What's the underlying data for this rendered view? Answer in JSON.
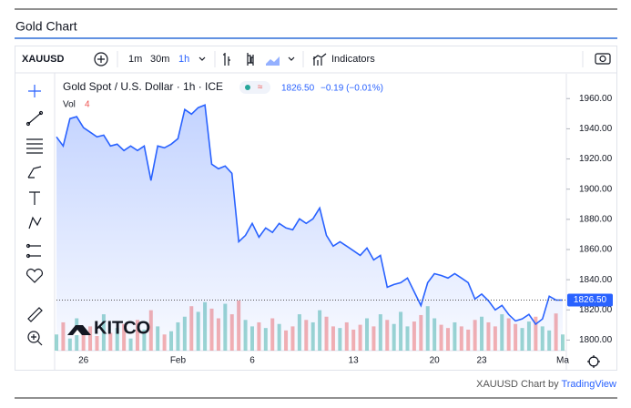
{
  "page_title": "Gold Chart",
  "toolbar": {
    "symbol": "XAUUSD",
    "intervals": [
      "1m",
      "30m",
      "1h"
    ],
    "indicators": "Indicators"
  },
  "chart_data": {
    "type": "line",
    "title": "Gold Spot / U.S. Dollar · 1h · ICE",
    "change": "−0.19 (−0.01%)",
    "volume_label": "Vol",
    "volume_value": 4,
    "logo": "KITCO",
    "color": "#2962ff",
    "volume_colors": [
      "#26a69a",
      "#ef5350"
    ],
    "last_price": {
      "value": 1826.5,
      "label": "1826.50"
    },
    "ylim": [
      1793,
      1968
    ],
    "yticks": [
      {
        "value": 1800,
        "label": "1800.00"
      },
      {
        "value": 1820,
        "label": "1820.00"
      },
      {
        "value": 1840,
        "label": "1840.00"
      },
      {
        "value": 1860,
        "label": "1860.00"
      },
      {
        "value": 1880,
        "label": "1880.00"
      },
      {
        "value": 1900,
        "label": "1900.00"
      },
      {
        "value": 1920,
        "label": "1920.00"
      },
      {
        "value": 1940,
        "label": "1940.00"
      },
      {
        "value": 1960,
        "label": "1960.00"
      }
    ],
    "categories": [
      null,
      null,
      null,
      null,
      "26",
      null,
      null,
      null,
      null,
      null,
      null,
      null,
      null,
      null,
      null,
      null,
      null,
      null,
      "Feb",
      null,
      null,
      null,
      null,
      null,
      null,
      null,
      null,
      null,
      null,
      "6",
      null,
      null,
      null,
      null,
      null,
      null,
      null,
      null,
      null,
      null,
      null,
      null,
      null,
      null,
      "13",
      null,
      null,
      null,
      null,
      null,
      null,
      null,
      null,
      null,
      null,
      null,
      "20",
      null,
      null,
      null,
      null,
      null,
      null,
      "23",
      null,
      null,
      null,
      null,
      null,
      null,
      null,
      null,
      null,
      null,
      null,
      "Ma"
    ],
    "values": [
      1934.6,
      1928.6,
      1946.7,
      1948,
      1940.7,
      1937.7,
      1934.6,
      1935.8,
      1928.6,
      1929.8,
      1925.6,
      1928.6,
      1925.6,
      1928.6,
      1905.7,
      1928.6,
      1927.4,
      1929.8,
      1933.4,
      1952.8,
      1949.7,
      1954,
      1955.8,
      1916.5,
      1913.5,
      1915.3,
      1910.5,
      1865.2,
      1869.4,
      1877.3,
      1868.2,
      1874.3,
      1871.3,
      1877.3,
      1874.3,
      1873.1,
      1880.3,
      1877.3,
      1880.3,
      1887.5,
      1869.4,
      1862.2,
      1865.2,
      1862.2,
      1859.2,
      1856.1,
      1861,
      1853.1,
      1856.1,
      1835,
      1836.8,
      1838,
      1841.1,
      1832,
      1822.9,
      1838,
      1844,
      1842.8,
      1841.1,
      1844,
      1841.1,
      1838,
      1827.2,
      1830.5,
      1826,
      1820,
      1823,
      1816.9,
      1812.7,
      1814,
      1817,
      1810.5,
      1814,
      1829,
      1826.5,
      1826.5
    ],
    "volumes": [
      20,
      35,
      15,
      40,
      25,
      30,
      18,
      45,
      22,
      28,
      33,
      15,
      38,
      26,
      50,
      30,
      20,
      24,
      35,
      42,
      55,
      48,
      60,
      52,
      40,
      58,
      45,
      62,
      38,
      30,
      35,
      28,
      40,
      33,
      25,
      30,
      45,
      38,
      35,
      50,
      42,
      30,
      28,
      35,
      26,
      32,
      40,
      30,
      45,
      38,
      33,
      48,
      30,
      36,
      44,
      55,
      40,
      32,
      28,
      35,
      30,
      26,
      38,
      42,
      35,
      30,
      45,
      40,
      33,
      28,
      36,
      42,
      30,
      25,
      46,
      20
    ]
  },
  "footer": {
    "text": "XAUUSD Chart by",
    "link": "TradingView"
  }
}
